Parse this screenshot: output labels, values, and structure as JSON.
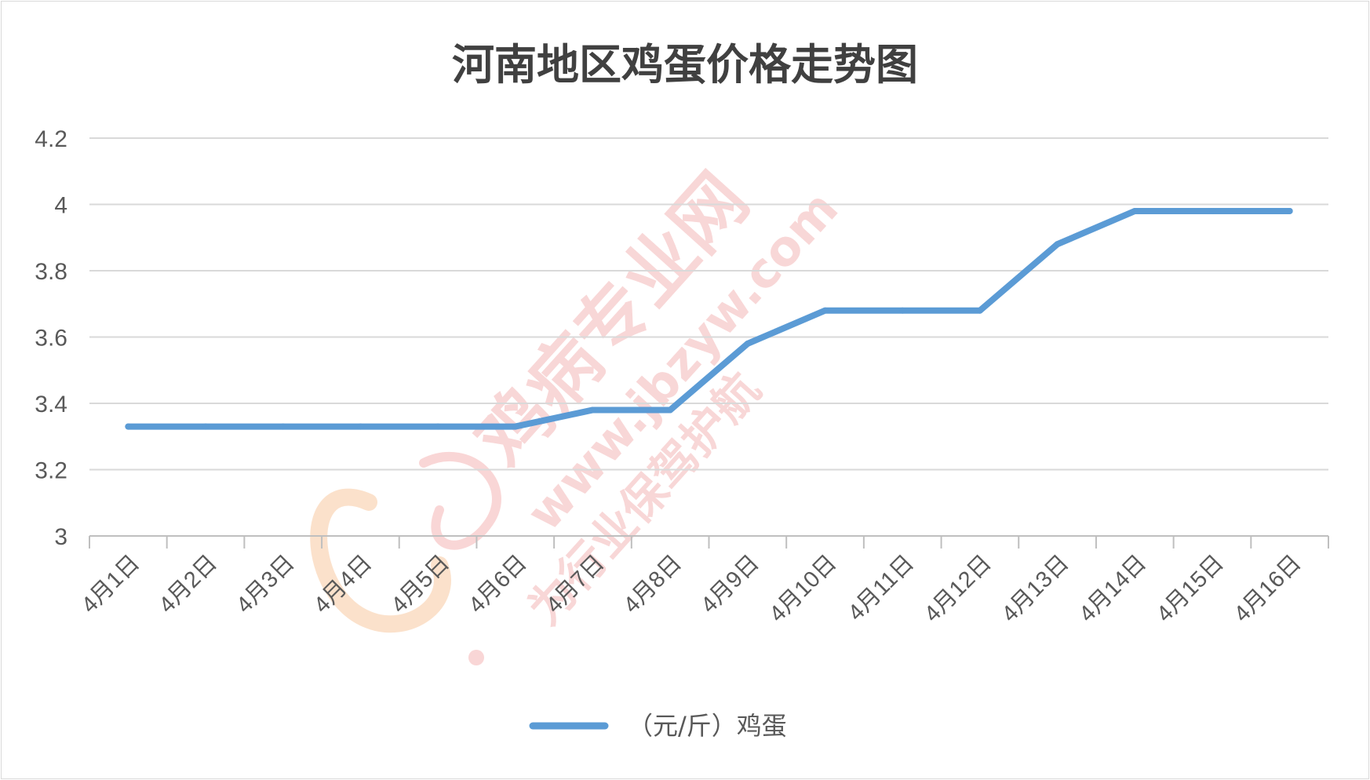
{
  "chart_data": {
    "type": "line",
    "title": "河南地区鸡蛋价格走势图",
    "categories": [
      "4月1日",
      "4月2日",
      "4月3日",
      "4月4日",
      "4月5日",
      "4月6日",
      "4月7日",
      "4月8日",
      "4月9日",
      "4月10日",
      "4月11日",
      "4月12日",
      "4月13日",
      "4月14日",
      "4月15日",
      "4月16日"
    ],
    "series": [
      {
        "name": "（元/斤）鸡蛋",
        "color": "#5b9bd5",
        "values": [
          3.33,
          3.33,
          3.33,
          3.33,
          3.33,
          3.33,
          3.38,
          3.38,
          3.58,
          3.68,
          3.68,
          3.68,
          3.88,
          3.98,
          3.98,
          3.98
        ]
      }
    ],
    "ylim": [
      3,
      4.2
    ],
    "yticks": [
      "3",
      "3.2",
      "3.4",
      "3.6",
      "3.8",
      "4",
      "4.2"
    ],
    "grid": true,
    "legend_position": "bottom"
  },
  "watermark": {
    "logo": "鸡病专业网",
    "url": "www.jbzyw.com",
    "slogan": "为行业保驾护航"
  }
}
